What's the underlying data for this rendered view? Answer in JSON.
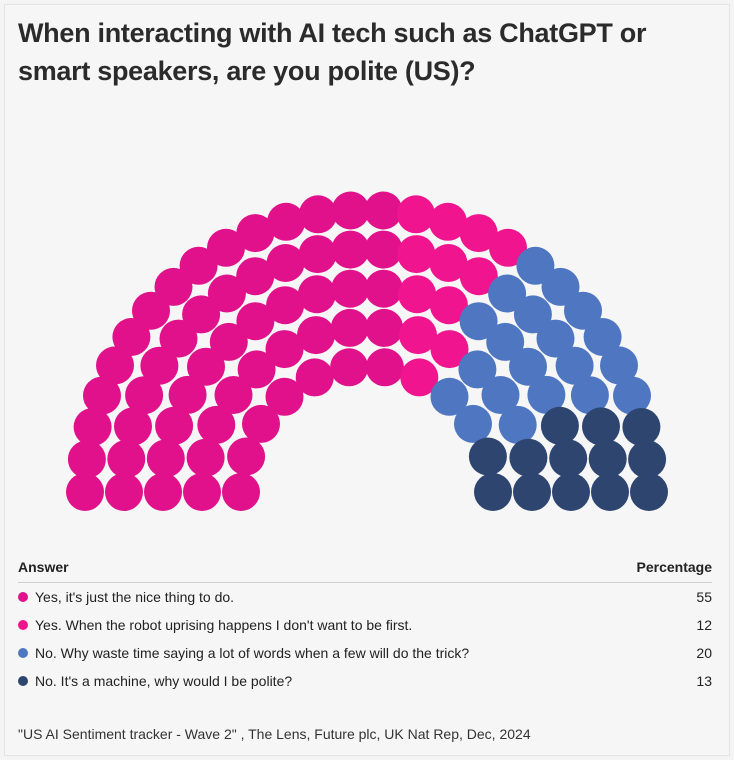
{
  "title": "When interacting with AI tech such as ChatGPT or smart speakers, are you polite (US)?",
  "table": {
    "header_answer": "Answer",
    "header_percentage": "Percentage",
    "rows": [
      {
        "label": "Yes, it's just the nice thing to do.",
        "value": "55",
        "color": "#e0118a"
      },
      {
        "label": "Yes. When the robot uprising happens I don't want to be first.",
        "value": "12",
        "color": "#f0158f"
      },
      {
        "label": "No. Why waste time saying a lot of words when a few will do the trick?",
        "value": "20",
        "color": "#4f77c1"
      },
      {
        "label": "No. It's a machine, why would I be polite?",
        "value": "13",
        "color": "#2e4570"
      }
    ]
  },
  "source": "\"US AI Sentiment tracker - Wave 2\" , The Lens, Future plc, UK Nat Rep, Dec, 2024",
  "chart_data": {
    "type": "parliament",
    "categories": [
      "Yes, it's just the nice thing to do.",
      "Yes. When the robot uprising happens I don't want to be first.",
      "No. Why waste time saying a lot of words when a few will do the trick?",
      "No. It's a machine, why would I be polite?"
    ],
    "values": [
      55,
      12,
      20,
      13
    ],
    "colors": [
      "#e0118a",
      "#f0158f",
      "#4f77c1",
      "#2e4570"
    ],
    "total_seats": 100
  }
}
